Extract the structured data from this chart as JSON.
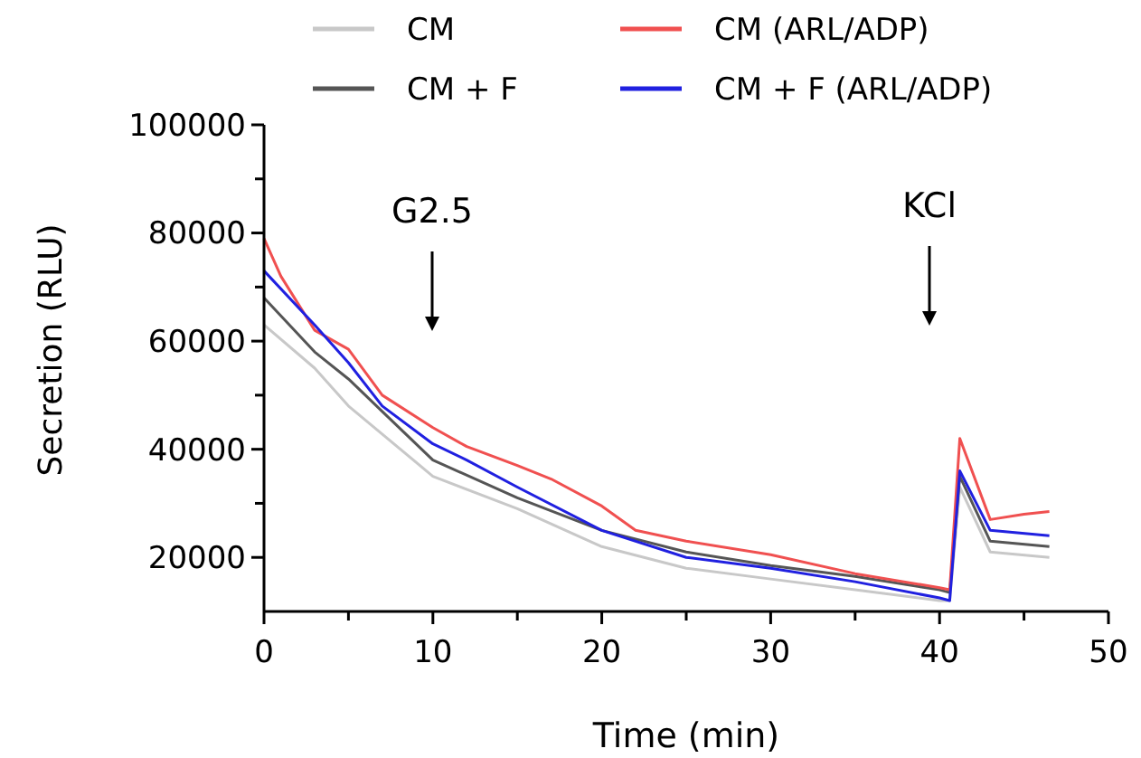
{
  "chart_data": {
    "type": "line",
    "xlabel": "Time (min)",
    "ylabel": "Secretion (RLU)",
    "xlim": [
      0,
      50
    ],
    "xticks": [
      0,
      {
        "value": 5,
        "label": null
      },
      10,
      {
        "value": 15,
        "label": null
      },
      20,
      {
        "value": 25,
        "label": null
      },
      30,
      {
        "value": 35,
        "label": null
      },
      40,
      {
        "value": 45,
        "label": null
      },
      50
    ],
    "ylim": [
      10000,
      100000
    ],
    "yticks": [
      20000,
      {
        "value": 30000,
        "label": null
      },
      40000,
      {
        "value": 50000,
        "label": null
      },
      60000,
      {
        "value": 70000,
        "label": null
      },
      80000,
      {
        "value": 90000,
        "label": null
      },
      100000
    ],
    "legend": "top",
    "grid": false,
    "marker": "none",
    "line_style": "solid",
    "annotations": [
      "G2.5",
      "KCl"
    ],
    "series": [
      {
        "name": "CM",
        "color": "#c8c8c8",
        "x": [
          0,
          3,
          5,
          10,
          15,
          20,
          25,
          30,
          35,
          40,
          40.6,
          41.2,
          43,
          46.5
        ],
        "values": [
          63000,
          55000,
          48000,
          35000,
          29000,
          22000,
          18000,
          16000,
          14000,
          12000,
          12000,
          33000,
          21000,
          20000
        ]
      },
      {
        "name": "CM + F",
        "color": "#555555",
        "x": [
          0,
          3,
          5,
          7,
          10,
          15,
          20,
          25,
          30,
          35,
          40,
          40.6,
          41.2,
          43,
          46.5
        ],
        "values": [
          68000,
          58000,
          53000,
          47000,
          38000,
          31000,
          25000,
          21000,
          18500,
          16500,
          14000,
          13500,
          35000,
          23000,
          22000
        ]
      },
      {
        "name": "CM (ARL/ADP)",
        "color": "#f05050",
        "x": [
          0,
          1,
          3,
          5,
          7,
          10,
          12,
          15,
          17,
          20,
          22,
          25,
          30,
          35,
          40,
          40.6,
          41.2,
          43,
          45,
          46.5
        ],
        "values": [
          79000,
          72000,
          62000,
          58500,
          50000,
          44000,
          40500,
          37000,
          34500,
          29500,
          25000,
          23000,
          20500,
          17000,
          14400,
          14000,
          42000,
          27000,
          28000,
          28500
        ]
      },
      {
        "name": "CM + F (ARL/ADP)",
        "color": "#2020e0",
        "x": [
          0,
          3,
          5,
          7,
          10,
          12,
          15,
          20,
          25,
          30,
          35,
          40,
          40.6,
          41.2,
          43,
          46.5
        ],
        "values": [
          73000,
          63000,
          56000,
          48000,
          41000,
          38000,
          33000,
          25000,
          20000,
          18000,
          15500,
          12500,
          12000,
          36000,
          25000,
          24000
        ]
      }
    ]
  }
}
